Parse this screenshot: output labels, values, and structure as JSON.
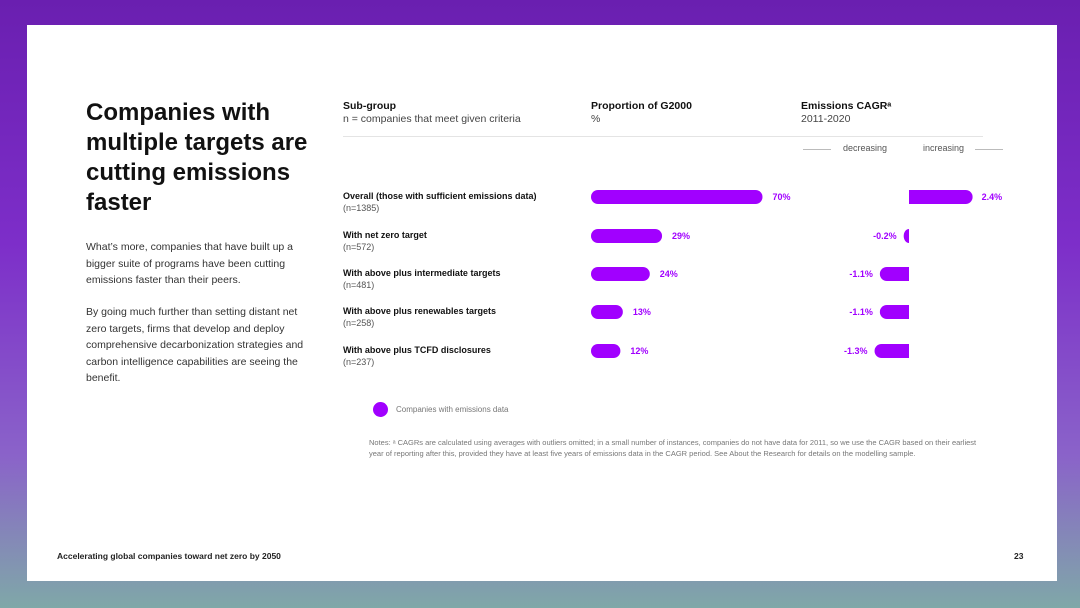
{
  "headline": "Companies with multiple targets are cutting emissions faster",
  "body": [
    "What’s more, companies that have built up a bigger suite of programs have been cutting emissions faster than their peers.",
    "By going much further than setting distant net zero targets, firms that develop and deploy comprehensive decarbonization strategies and carbon intelligence capabilities are seeing the benefit."
  ],
  "columns": {
    "subgroup": {
      "title": "Sub-group",
      "subtitle": "n = companies that meet given criteria"
    },
    "proportion": {
      "title": "Proportion of G2000",
      "subtitle": "%"
    },
    "cagr": {
      "title": "Emissions CAGRᵃ",
      "subtitle": "2011-2020"
    }
  },
  "direction": {
    "decreasing": "decreasing",
    "increasing": "increasing"
  },
  "legend": "Companies with emissions data",
  "notes": "Notes: ᵃ CAGRs are calculated using averages with outliers omitted; in a small number of instances, companies do not have data for 2011, so we use the CAGR based on their earliest year of reporting after this, provided they have at least five years of emissions data in the CAGR period. See About the Research for details on the modelling sample.",
  "footer": {
    "title": "Accelerating global companies toward net zero by 2050",
    "page": "23"
  },
  "colors": {
    "accent": "#a100ff",
    "text": "#111111"
  },
  "chart_data": {
    "type": "bar",
    "categories": [
      "Overall (those with sufficient emissions data)",
      "With net zero target",
      "With above plus intermediate targets",
      "With above plus renewables targets",
      "With above plus TCFD disclosures"
    ],
    "n_labels": [
      "(n=1385)",
      "(n=572)",
      "(n=481)",
      "(n=258)",
      "(n=237)"
    ],
    "series": [
      {
        "name": "Proportion of G2000",
        "values": [
          70,
          29,
          24,
          13,
          12
        ],
        "labels": [
          "70%",
          "29%",
          "24%",
          "13%",
          "12%"
        ]
      },
      {
        "name": "Emissions CAGR",
        "values": [
          2.4,
          -0.2,
          -1.1,
          -1.1,
          -1.3
        ],
        "labels": [
          "2.4%",
          "-0.2%",
          "-1.1%",
          "-1.1%",
          "-1.3%"
        ]
      }
    ]
  }
}
